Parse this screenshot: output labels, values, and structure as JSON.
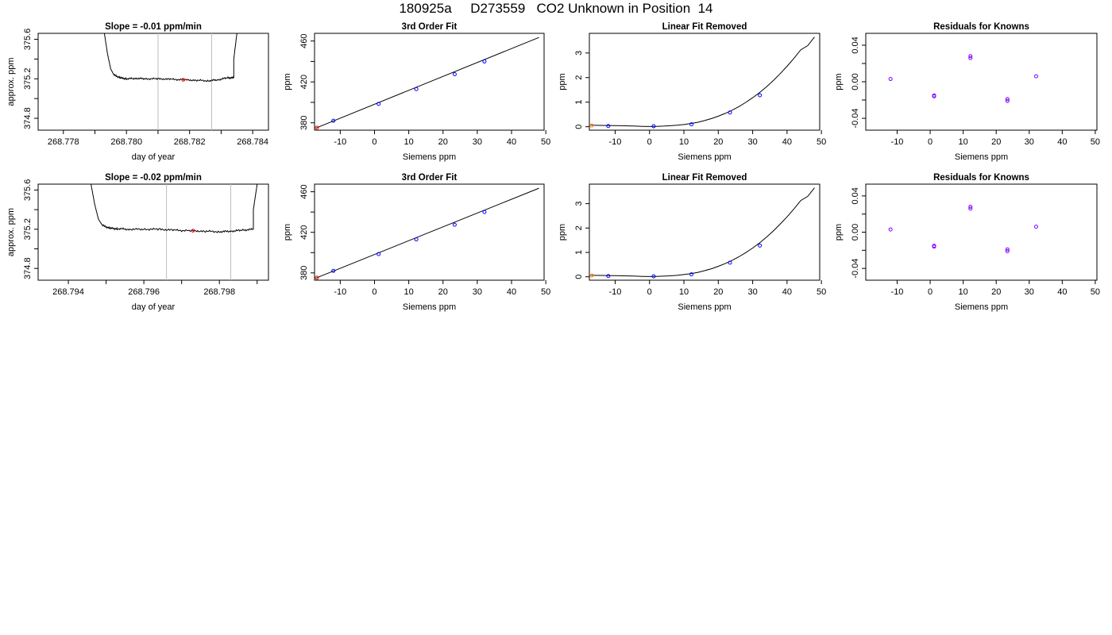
{
  "page": {
    "title": "180925a     D273559   CO2 Unknown in Position  14"
  },
  "colors": {
    "trace": "#000000",
    "frame": "#000000",
    "marker_lines": "#bebebe",
    "known_points": "#0000ff",
    "residual_points": "#8000ff",
    "unknown_point": "#ff0000",
    "unknown_point_linear_removed": "#ff8000"
  },
  "chart_data": [
    {
      "type": "line",
      "title": "Slope =  -0.01  ppm/min",
      "xlabel": "day of year",
      "ylabel": "approx. ppm",
      "xlim": [
        268.7772,
        268.7845
      ],
      "ylim": [
        374.68,
        375.66
      ],
      "xticks": [
        268.778,
        268.779,
        268.78,
        268.781,
        268.782,
        268.783,
        268.784
      ],
      "xtick_labels": [
        "268.778",
        "",
        "268.780",
        "",
        "268.782",
        "",
        "268.784"
      ],
      "yticks": [
        374.8,
        375.0,
        375.2,
        375.4,
        375.6
      ],
      "ytick_labels": [
        "374.8",
        "",
        "375.2",
        "",
        "375.6"
      ],
      "vlines": [
        268.781,
        268.7827
      ],
      "trace": {
        "x": [
          268.7793,
          268.7794,
          268.7795,
          268.7796,
          268.7798,
          268.78,
          268.7803,
          268.7806,
          268.781,
          268.7814,
          268.7818,
          268.7822,
          268.7826,
          268.7829,
          268.7832,
          268.7834,
          268.7834,
          268.7835
        ],
        "y": [
          375.66,
          375.45,
          375.3,
          375.24,
          375.21,
          375.2,
          375.205,
          375.2,
          375.2,
          375.195,
          375.19,
          375.185,
          375.18,
          375.19,
          375.21,
          375.21,
          375.4,
          375.66
        ],
        "noise": 0.006
      },
      "marker": {
        "x": 268.7818,
        "y": 375.19
      },
      "grid": false
    },
    {
      "type": "scatter",
      "title": "3rd Order Fit",
      "xlabel": "Siemens ppm",
      "ylabel": "ppm",
      "xlim": [
        -17.5,
        49.5
      ],
      "ylim": [
        372.8,
        467.5
      ],
      "xticks": [
        -10,
        0,
        10,
        20,
        30,
        40,
        50
      ],
      "xtick_labels": [
        "-10",
        "0",
        "10",
        "20",
        "30",
        "40",
        "50"
      ],
      "yticks": [
        380,
        400,
        420,
        440,
        460
      ],
      "ytick_labels": [
        "380",
        "",
        "420",
        "",
        "460"
      ],
      "known": {
        "x": [
          -12.0,
          1.2,
          12.2,
          23.4,
          32.1
        ],
        "y": [
          382.0,
          398.5,
          413.0,
          427.5,
          440.0
        ]
      },
      "unknown": {
        "x": [
          -16.8
        ],
        "y": [
          375.2
        ]
      },
      "fit_line": {
        "x": [
          -17.0,
          48.0
        ],
        "y": [
          375.0,
          463.5
        ]
      },
      "grid": false
    },
    {
      "type": "scatter",
      "title": "Linear Fit Removed",
      "xlabel": "Siemens ppm",
      "ylabel": "ppm",
      "xlim": [
        -17.5,
        49.5
      ],
      "ylim": [
        -0.14,
        3.8
      ],
      "xticks": [
        -10,
        0,
        10,
        20,
        30,
        40,
        50
      ],
      "xtick_labels": [
        "-10",
        "0",
        "10",
        "20",
        "30",
        "40",
        "50"
      ],
      "yticks": [
        0,
        1,
        2,
        3
      ],
      "ytick_labels": [
        "0",
        "1",
        "2",
        "3"
      ],
      "known": {
        "x": [
          -12.0,
          1.2,
          12.2,
          23.4,
          32.1
        ],
        "y": [
          0.03,
          0.02,
          0.1,
          0.58,
          1.28
        ]
      },
      "unknown": {
        "x": [
          -16.8
        ],
        "y": [
          0.05
        ]
      },
      "curve": {
        "x": [
          -17,
          -14,
          -12,
          -10,
          -8,
          -6,
          -4,
          -2,
          0,
          2,
          4,
          6,
          8,
          10,
          12,
          14,
          16,
          18,
          20,
          22,
          24,
          26,
          28,
          30,
          32,
          34,
          36,
          38,
          40,
          42,
          44,
          46,
          48
        ],
        "y": [
          0.06,
          0.055,
          0.05,
          0.045,
          0.04,
          0.035,
          0.025,
          0.015,
          0.01,
          0.015,
          0.025,
          0.04,
          0.06,
          0.09,
          0.13,
          0.18,
          0.25,
          0.33,
          0.43,
          0.54,
          0.67,
          0.82,
          0.99,
          1.18,
          1.39,
          1.62,
          1.88,
          2.16,
          2.46,
          2.78,
          3.13,
          3.3,
          3.65
        ]
      },
      "grid": false
    },
    {
      "type": "scatter",
      "title": "Residuals for Knowns",
      "xlabel": "Siemens ppm",
      "ylabel": "ppm",
      "xlim": [
        -19.5,
        50.5
      ],
      "ylim": [
        -0.053,
        0.053
      ],
      "xticks": [
        -10,
        0,
        10,
        20,
        30,
        40,
        50
      ],
      "xtick_labels": [
        "-10",
        "0",
        "10",
        "20",
        "30",
        "40",
        "50"
      ],
      "yticks": [
        -0.04,
        -0.02,
        0.0,
        0.02,
        0.04
      ],
      "ytick_labels": [
        "-0.04",
        "",
        "0.00",
        "",
        "0.04"
      ],
      "points": {
        "x": [
          -12.0,
          1.2,
          1.2,
          12.2,
          12.2,
          23.4,
          23.4,
          32.1
        ],
        "y": [
          0.003,
          -0.015,
          -0.016,
          0.028,
          0.026,
          -0.019,
          -0.021,
          0.006
        ]
      },
      "grid": false
    },
    {
      "type": "line",
      "title": "Slope =  -0.02  ppm/min",
      "xlabel": "day of year",
      "ylabel": "approx. ppm",
      "xlim": [
        268.7932,
        268.7993
      ],
      "ylim": [
        374.68,
        375.66
      ],
      "xticks": [
        268.794,
        268.795,
        268.796,
        268.797,
        268.798,
        268.799
      ],
      "xtick_labels": [
        "268.794",
        "",
        "268.796",
        "",
        "268.798",
        ""
      ],
      "yticks": [
        374.8,
        375.0,
        375.2,
        375.4,
        375.6
      ],
      "ytick_labels": [
        "374.8",
        "",
        "375.2",
        "",
        "375.6"
      ],
      "vlines": [
        268.7966,
        268.7983
      ],
      "trace": {
        "x": [
          268.7946,
          268.7947,
          268.7948,
          268.7949,
          268.7951,
          268.7953,
          268.7956,
          268.796,
          268.7964,
          268.7968,
          268.7972,
          268.7976,
          268.798,
          268.7983,
          268.7986,
          268.7989,
          268.7989,
          268.799
        ],
        "y": [
          375.66,
          375.45,
          375.3,
          375.24,
          375.21,
          375.205,
          375.2,
          375.2,
          375.2,
          375.19,
          375.185,
          375.18,
          375.175,
          375.18,
          375.19,
          375.2,
          375.4,
          375.66
        ],
        "noise": 0.007
      },
      "marker": {
        "x": 268.7973,
        "y": 375.185
      },
      "grid": false
    },
    {
      "type": "scatter",
      "title": "3rd Order Fit",
      "xlabel": "Siemens ppm",
      "ylabel": "ppm",
      "xlim": [
        -17.5,
        49.5
      ],
      "ylim": [
        372.8,
        467.5
      ],
      "xticks": [
        -10,
        0,
        10,
        20,
        30,
        40,
        50
      ],
      "xtick_labels": [
        "-10",
        "0",
        "10",
        "20",
        "30",
        "40",
        "50"
      ],
      "yticks": [
        380,
        400,
        420,
        440,
        460
      ],
      "ytick_labels": [
        "380",
        "",
        "420",
        "",
        "460"
      ],
      "known": {
        "x": [
          -12.0,
          1.2,
          12.2,
          23.4,
          32.1
        ],
        "y": [
          382.0,
          398.5,
          413.0,
          427.5,
          440.0
        ]
      },
      "unknown": {
        "x": [
          -16.8
        ],
        "y": [
          375.2
        ]
      },
      "fit_line": {
        "x": [
          -17.0,
          48.0
        ],
        "y": [
          375.0,
          463.5
        ]
      },
      "grid": false
    },
    {
      "type": "scatter",
      "title": "Linear Fit Removed",
      "xlabel": "Siemens ppm",
      "ylabel": "ppm",
      "xlim": [
        -17.5,
        49.5
      ],
      "ylim": [
        -0.14,
        3.8
      ],
      "xticks": [
        -10,
        0,
        10,
        20,
        30,
        40,
        50
      ],
      "xtick_labels": [
        "-10",
        "0",
        "10",
        "20",
        "30",
        "40",
        "50"
      ],
      "yticks": [
        0,
        1,
        2,
        3
      ],
      "ytick_labels": [
        "0",
        "1",
        "2",
        "3"
      ],
      "known": {
        "x": [
          -12.0,
          1.2,
          12.2,
          23.4,
          32.1
        ],
        "y": [
          0.03,
          0.02,
          0.1,
          0.58,
          1.28
        ]
      },
      "unknown": {
        "x": [
          -16.8
        ],
        "y": [
          0.05
        ]
      },
      "curve": {
        "x": [
          -17,
          -14,
          -12,
          -10,
          -8,
          -6,
          -4,
          -2,
          0,
          2,
          4,
          6,
          8,
          10,
          12,
          14,
          16,
          18,
          20,
          22,
          24,
          26,
          28,
          30,
          32,
          34,
          36,
          38,
          40,
          42,
          44,
          46,
          48
        ],
        "y": [
          0.06,
          0.055,
          0.05,
          0.045,
          0.04,
          0.035,
          0.025,
          0.015,
          0.01,
          0.015,
          0.025,
          0.04,
          0.06,
          0.09,
          0.13,
          0.18,
          0.25,
          0.33,
          0.43,
          0.54,
          0.67,
          0.82,
          0.99,
          1.18,
          1.39,
          1.62,
          1.88,
          2.16,
          2.46,
          2.78,
          3.13,
          3.3,
          3.65
        ]
      },
      "grid": false
    },
    {
      "type": "scatter",
      "title": "Residuals for Knowns",
      "xlabel": "Siemens ppm",
      "ylabel": "ppm",
      "xlim": [
        -19.5,
        50.5
      ],
      "ylim": [
        -0.053,
        0.053
      ],
      "xticks": [
        -10,
        0,
        10,
        20,
        30,
        40,
        50
      ],
      "xtick_labels": [
        "-10",
        "0",
        "10",
        "20",
        "30",
        "40",
        "50"
      ],
      "yticks": [
        -0.04,
        -0.02,
        0.0,
        0.02,
        0.04
      ],
      "ytick_labels": [
        "-0.04",
        "",
        "0.00",
        "",
        "0.04"
      ],
      "points": {
        "x": [
          -12.0,
          1.2,
          1.2,
          12.2,
          12.2,
          23.4,
          23.4,
          32.1
        ],
        "y": [
          0.003,
          -0.015,
          -0.016,
          0.028,
          0.026,
          -0.019,
          -0.021,
          0.006
        ]
      },
      "grid": false
    }
  ]
}
